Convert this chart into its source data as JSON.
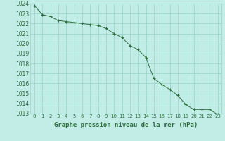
{
  "x": [
    0,
    1,
    2,
    3,
    4,
    5,
    6,
    7,
    8,
    9,
    10,
    11,
    12,
    13,
    14,
    15,
    16,
    17,
    18,
    19,
    20,
    21,
    22,
    23
  ],
  "y": [
    1023.8,
    1022.9,
    1022.7,
    1022.3,
    1022.2,
    1022.1,
    1022.0,
    1021.9,
    1021.8,
    1021.5,
    1021.0,
    1020.6,
    1019.8,
    1019.4,
    1018.6,
    1016.5,
    1015.9,
    1015.4,
    1014.8,
    1013.9,
    1013.4,
    1013.4,
    1013.4,
    1012.9
  ],
  "title": "Graphe pression niveau de la mer (hPa)",
  "bg_color": "#c2ece6",
  "grid_color": "#96d4cc",
  "line_color": "#2d6e3e",
  "marker_color": "#2d6e3e",
  "text_color": "#2d6e3e",
  "ylim_min": 1013,
  "ylim_max": 1024,
  "ytick_step": 1,
  "xtick_labels": [
    "0",
    "1",
    "2",
    "3",
    "4",
    "5",
    "6",
    "7",
    "8",
    "9",
    "10",
    "11",
    "12",
    "13",
    "14",
    "15",
    "16",
    "17",
    "18",
    "19",
    "20",
    "21",
    "22",
    "23"
  ]
}
